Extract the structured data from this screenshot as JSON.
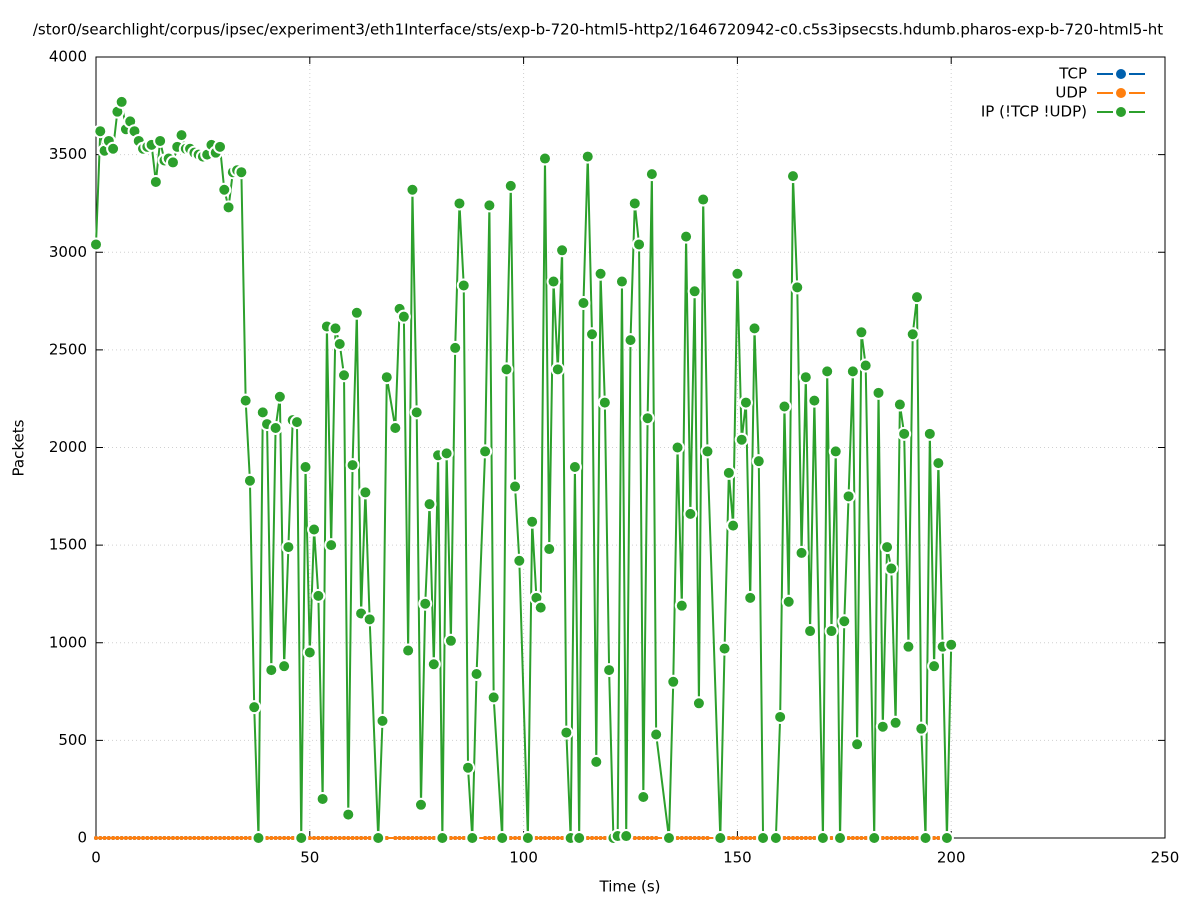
{
  "chart_data": {
    "type": "line",
    "title": "/stor0/searchlight/corpus/ipsec/experiment3/eth1Interface/sts/exp-b-720-html5-http2/1646720942-c0.c5s3ipsecsts.hdumb.pharos-exp-b-720-html5-ht",
    "xlabel": "Time (s)",
    "ylabel": "Packets",
    "xlim": [
      0,
      250
    ],
    "xticks": [
      0,
      50,
      100,
      150,
      200,
      250
    ],
    "ylim": [
      0,
      4000
    ],
    "yticks": [
      0,
      500,
      1000,
      1500,
      2000,
      2500,
      3000,
      3500,
      4000
    ],
    "grid": true,
    "legend": "top-right",
    "x": [
      0,
      1,
      2,
      3,
      4,
      5,
      6,
      7,
      8,
      9,
      10,
      11,
      12,
      13,
      14,
      15,
      16,
      17,
      18,
      19,
      20,
      21,
      22,
      23,
      24,
      25,
      26,
      27,
      28,
      29,
      30,
      31,
      32,
      33,
      34,
      35,
      36,
      37,
      38,
      39,
      40,
      41,
      42,
      43,
      44,
      45,
      46,
      47,
      48,
      49,
      50,
      51,
      52,
      53,
      54,
      55,
      56,
      57,
      58,
      59,
      60,
      61,
      62,
      63,
      64,
      66,
      67,
      68,
      70,
      71,
      72,
      73,
      74,
      75,
      76,
      77,
      78,
      79,
      80,
      81,
      82,
      83,
      84,
      85,
      86,
      87,
      88,
      89,
      91,
      92,
      93,
      95,
      96,
      97,
      98,
      99,
      101,
      102,
      103,
      104,
      105,
      106,
      107,
      108,
      109,
      110,
      111,
      112,
      113,
      114,
      115,
      116,
      117,
      118,
      119,
      120,
      121,
      122,
      123,
      124,
      125,
      126,
      127,
      128,
      129,
      130,
      131,
      134,
      135,
      136,
      137,
      138,
      139,
      140,
      141,
      142,
      143,
      146,
      147,
      148,
      149,
      150,
      151,
      152,
      153,
      154,
      155,
      156,
      159,
      160,
      161,
      162,
      163,
      164,
      165,
      166,
      167,
      168,
      170,
      171,
      172,
      173,
      174,
      175,
      176,
      177,
      178,
      179,
      180,
      182,
      183,
      184,
      185,
      186,
      187,
      188,
      189,
      190,
      191,
      192,
      193,
      194,
      195,
      196,
      197,
      198,
      199,
      200
    ],
    "series": [
      {
        "name": "TCP",
        "color": "#0060ad",
        "values": [
          0,
          0,
          0,
          0,
          0,
          0,
          0,
          0,
          0,
          0,
          0,
          0,
          0,
          0,
          0,
          0,
          0,
          0,
          0,
          0,
          0,
          0,
          0,
          0,
          0,
          0,
          0,
          0,
          0,
          0,
          0,
          0,
          0,
          0,
          0,
          0,
          0,
          0,
          0,
          0,
          0,
          0,
          0,
          0,
          0,
          0,
          0,
          0,
          0,
          0,
          0,
          0,
          0,
          0,
          0,
          0,
          0,
          0,
          0,
          0,
          0,
          0,
          0,
          0,
          0,
          0,
          0,
          0,
          0,
          0,
          0,
          0,
          0,
          0,
          0,
          0,
          0,
          0,
          0,
          0,
          0,
          0,
          0,
          0,
          0,
          0,
          0,
          0,
          0,
          0,
          0,
          0,
          0,
          0,
          0,
          0,
          0,
          0,
          0,
          0,
          0,
          0,
          0,
          0,
          0,
          0,
          0,
          0,
          0,
          0,
          0,
          0,
          0,
          0,
          0,
          0,
          0,
          0,
          0,
          0,
          0,
          0,
          0,
          0,
          0,
          0,
          0,
          0,
          0,
          0,
          0,
          0,
          0,
          0,
          0,
          0,
          0,
          0,
          0,
          0,
          0,
          0,
          0,
          0,
          0,
          0,
          0,
          0,
          0,
          0,
          0,
          0,
          0,
          0,
          0,
          0,
          0,
          0,
          0,
          0,
          0,
          0,
          0,
          0,
          0,
          0,
          0,
          0,
          0,
          0,
          0,
          0,
          0,
          0,
          0,
          0,
          0,
          0,
          0,
          0,
          0,
          0,
          0,
          0,
          0,
          0,
          0,
          0
        ]
      },
      {
        "name": "UDP",
        "color": "#ff7f0e",
        "values": [
          0,
          0,
          0,
          0,
          0,
          0,
          0,
          0,
          0,
          0,
          0,
          0,
          0,
          0,
          0,
          0,
          0,
          0,
          0,
          0,
          0,
          0,
          0,
          0,
          0,
          0,
          0,
          0,
          0,
          0,
          0,
          0,
          0,
          0,
          0,
          0,
          0,
          0,
          0,
          0,
          0,
          0,
          0,
          0,
          0,
          0,
          0,
          0,
          0,
          0,
          0,
          0,
          0,
          0,
          0,
          0,
          0,
          0,
          0,
          0,
          0,
          0,
          0,
          0,
          0,
          0,
          0,
          0,
          0,
          0,
          0,
          0,
          0,
          0,
          0,
          0,
          0,
          0,
          0,
          0,
          0,
          0,
          0,
          0,
          0,
          0,
          0,
          0,
          0,
          0,
          0,
          0,
          0,
          0,
          0,
          0,
          0,
          0,
          0,
          0,
          0,
          0,
          0,
          0,
          0,
          0,
          0,
          0,
          0,
          0,
          0,
          0,
          0,
          0,
          0,
          0,
          0,
          0,
          0,
          0,
          0,
          0,
          0,
          0,
          0,
          0,
          0,
          0,
          0,
          0,
          0,
          0,
          0,
          0,
          0,
          0,
          0,
          0,
          0,
          0,
          0,
          0,
          0,
          0,
          0,
          0,
          0,
          0,
          0,
          0,
          0,
          0,
          0,
          0,
          0,
          0,
          0,
          0,
          0,
          0,
          0,
          0,
          0,
          0,
          0,
          0,
          0,
          0,
          0,
          0,
          0,
          0,
          0,
          0,
          0,
          0,
          0,
          0,
          0,
          0,
          0,
          0,
          0,
          0,
          0,
          0,
          0,
          0
        ]
      },
      {
        "name": "IP (!TCP  !UDP)",
        "color": "#2ca02c",
        "values": [
          3040,
          3620,
          3520,
          3570,
          3530,
          3720,
          3770,
          3630,
          3670,
          3620,
          3570,
          3530,
          3540,
          3550,
          3360,
          3570,
          3470,
          3480,
          3460,
          3540,
          3600,
          3530,
          3530,
          3510,
          3500,
          3490,
          3500,
          3550,
          3510,
          3540,
          3320,
          3230,
          3410,
          3420,
          3410,
          2240,
          1830,
          670,
          0,
          2180,
          2120,
          860,
          2100,
          2260,
          880,
          1490,
          2140,
          2130,
          0,
          1900,
          950,
          1580,
          1240,
          200,
          2620,
          1500,
          2610,
          2530,
          2370,
          120,
          1910,
          2690,
          1150,
          1770,
          1120,
          0,
          600,
          2360,
          2100,
          2710,
          2670,
          960,
          3320,
          2180,
          170,
          1200,
          1710,
          890,
          1960,
          0,
          1970,
          1010,
          2510,
          3250,
          2830,
          360,
          0,
          840,
          1980,
          3240,
          720,
          0,
          2400,
          3340,
          1800,
          1420,
          0,
          1620,
          1230,
          1180,
          3480,
          1480,
          2850,
          2400,
          3010,
          540,
          0,
          1900,
          0,
          2740,
          3490,
          2580,
          390,
          2890,
          2230,
          860,
          0,
          10,
          2850,
          10,
          2550,
          3250,
          3040,
          210,
          2150,
          3400,
          530,
          0,
          800,
          2000,
          1190,
          3080,
          1660,
          2800,
          690,
          3270,
          1980,
          0,
          970,
          1870,
          1600,
          2890,
          2040,
          2230,
          1230,
          2610,
          1930,
          0,
          0,
          620,
          2210,
          1210,
          3390,
          2820,
          1460,
          2360,
          1060,
          2240,
          0,
          2390,
          1060,
          1980,
          0,
          1110,
          1750,
          2390,
          480,
          2590,
          2420,
          0,
          2280,
          570,
          1490,
          1380,
          590,
          2220,
          2070,
          980,
          2580,
          2770,
          560,
          0,
          2070,
          880,
          1920,
          980,
          0,
          990
        ]
      }
    ]
  }
}
